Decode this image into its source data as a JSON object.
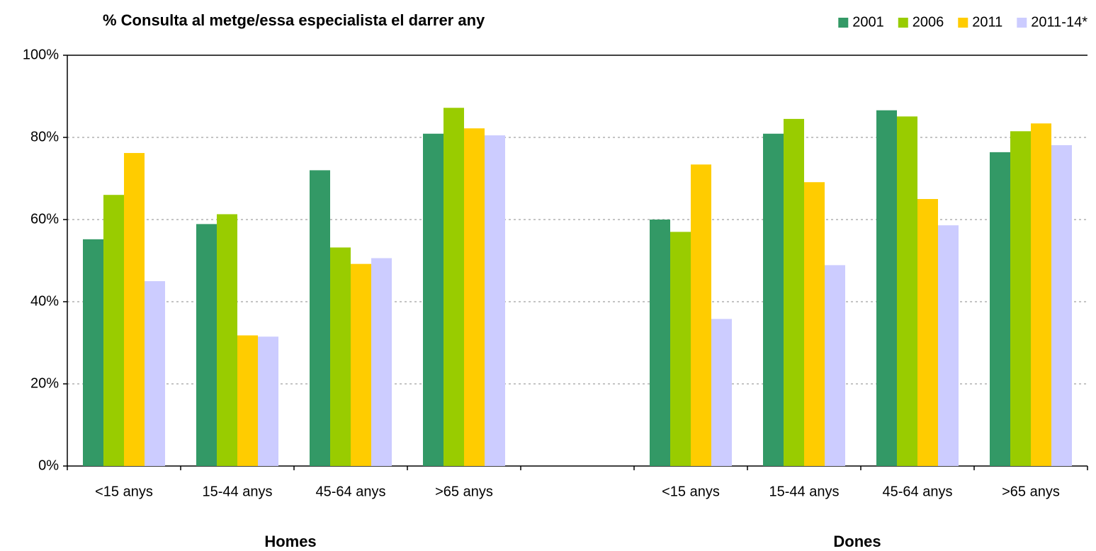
{
  "chart_data": {
    "type": "bar",
    "title": "% Consulta al metge/essa especialista el darrer any",
    "categories": [
      "<15 anys",
      "15-44 anys",
      "45-64 anys",
      ">65 anys",
      null,
      "<15 anys",
      "15-44 anys",
      "45-64 anys",
      ">65 anys"
    ],
    "group_labels": [
      "Homes",
      "Dones"
    ],
    "series": [
      {
        "name": "2001",
        "color": "#339966",
        "values": [
          55.2,
          58.9,
          72,
          80.9,
          null,
          60,
          80.9,
          86.6,
          76.4
        ]
      },
      {
        "name": "2006",
        "color": "#99cc00",
        "values": [
          66,
          61.3,
          53.2,
          87.2,
          null,
          57,
          84.5,
          85.1,
          81.5
        ]
      },
      {
        "name": "2011",
        "color": "#ffcc00",
        "values": [
          76.2,
          31.8,
          49.2,
          82.2,
          null,
          73.4,
          69.1,
          65,
          83.4
        ]
      },
      {
        "name": "2011-14*",
        "color": "#ccccff",
        "values": [
          45,
          31.5,
          50.6,
          80.5,
          null,
          35.8,
          48.9,
          58.6,
          78.1
        ]
      }
    ],
    "ylim": [
      0,
      100
    ],
    "yticks": [
      {
        "value": 0,
        "label": "0%"
      },
      {
        "value": 20,
        "label": "20%"
      },
      {
        "value": 40,
        "label": "40%"
      },
      {
        "value": 60,
        "label": "60%"
      },
      {
        "value": 80,
        "label": "80%"
      },
      {
        "value": 100,
        "label": "100%"
      }
    ],
    "grid": true,
    "legend": "top-right"
  }
}
